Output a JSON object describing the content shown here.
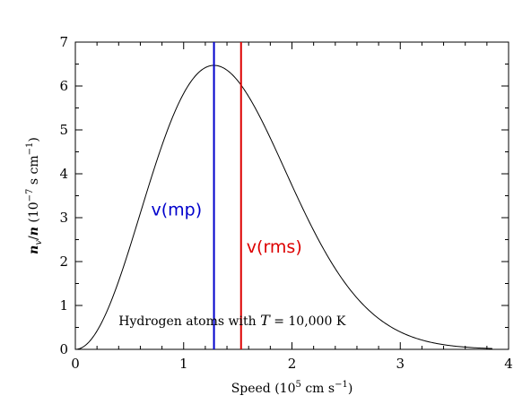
{
  "chart_data": {
    "type": "line",
    "title": "",
    "xlabel_parts": [
      "Speed (10",
      "5",
      " cm s",
      "−1",
      ")"
    ],
    "ylabel_parts": [
      "n",
      "v",
      "/",
      "n",
      " (10",
      "−7",
      " s cm",
      "−1",
      ")"
    ],
    "xlim": [
      0,
      4
    ],
    "ylim": [
      0,
      7
    ],
    "x_ticks": [
      "0",
      "1",
      "2",
      "3",
      "4"
    ],
    "y_ticks": [
      "0",
      "1",
      "2",
      "3",
      "4",
      "5",
      "6",
      "7"
    ],
    "grid": false,
    "curve": {
      "kind": "maxwell-boltzmann",
      "peak_speed": 1.28,
      "x": [
        0,
        0.25,
        0.5,
        0.75,
        1.0,
        1.28,
        1.5,
        1.75,
        2.0,
        2.25,
        2.5,
        2.75,
        3.0,
        3.25,
        3.5,
        3.75,
        3.85
      ],
      "y": [
        0,
        0.8,
        2.8,
        4.8,
        6.0,
        6.47,
        6.2,
        5.1,
        3.7,
        2.4,
        1.35,
        0.7,
        0.32,
        0.12,
        0.04,
        0.012,
        0.005
      ],
      "color": "#000000"
    },
    "vlines": [
      {
        "x": 1.28,
        "label": "v(mp)",
        "color": "#0000cc",
        "label_x": 0.7,
        "label_y": 3.05
      },
      {
        "x": 1.53,
        "label": "v(rms)",
        "color": "#dd0000",
        "label_x": 1.58,
        "label_y": 2.2
      }
    ],
    "annotation": {
      "parts": [
        "Hydrogen atoms with ",
        "T",
        " = 10,000 K"
      ],
      "x": 0.4,
      "y": 0.55
    }
  }
}
